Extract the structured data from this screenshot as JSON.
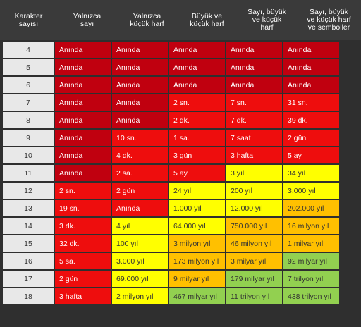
{
  "headers": [
    "Karakter\nsayısı",
    "Yalnızca\nsayı",
    "Yalnızca\nküçük harf",
    "Büyük ve\nküçük harf",
    "Sayı, büyük\nve küçük\nharf",
    "Sayı, büyük\nve küçük harf\nve semboller"
  ],
  "colors": {
    "dark": "#c0000f",
    "red": "#ee0d0d",
    "yellow": "#ffff00",
    "orange": "#ffc000",
    "green": "#92d050"
  },
  "rows": [
    {
      "chars": "4",
      "cells": [
        [
          "Anında",
          "dark"
        ],
        [
          "Anında",
          "dark"
        ],
        [
          "Anında",
          "dark"
        ],
        [
          "Anında",
          "dark"
        ],
        [
          "Anında",
          "dark"
        ]
      ]
    },
    {
      "chars": "5",
      "cells": [
        [
          "Anında",
          "dark"
        ],
        [
          "Anında",
          "dark"
        ],
        [
          "Anında",
          "dark"
        ],
        [
          "Anında",
          "dark"
        ],
        [
          "Anında",
          "dark"
        ]
      ]
    },
    {
      "chars": "6",
      "cells": [
        [
          "Anında",
          "dark"
        ],
        [
          "Anında",
          "dark"
        ],
        [
          "Anında",
          "dark"
        ],
        [
          "Anında",
          "dark"
        ],
        [
          "Anında",
          "dark"
        ]
      ]
    },
    {
      "chars": "7",
      "cells": [
        [
          "Anında",
          "dark"
        ],
        [
          "Anında",
          "dark"
        ],
        [
          "2 sn.",
          "red"
        ],
        [
          "7 sn.",
          "red"
        ],
        [
          "31 sn.",
          "red"
        ]
      ]
    },
    {
      "chars": "8",
      "cells": [
        [
          "Anında",
          "dark"
        ],
        [
          "Anında",
          "dark"
        ],
        [
          "2 dk.",
          "red"
        ],
        [
          "7 dk.",
          "red"
        ],
        [
          "39 dk.",
          "red"
        ]
      ]
    },
    {
      "chars": "9",
      "cells": [
        [
          "Anında",
          "dark"
        ],
        [
          "10 sn.",
          "red"
        ],
        [
          "1 sa.",
          "red"
        ],
        [
          "7 saat",
          "red"
        ],
        [
          "2 gün",
          "red"
        ]
      ]
    },
    {
      "chars": "10",
      "cells": [
        [
          "Anında",
          "dark"
        ],
        [
          "4 dk.",
          "red"
        ],
        [
          "3 gün",
          "red"
        ],
        [
          "3 hafta",
          "red"
        ],
        [
          "5 ay",
          "red"
        ]
      ]
    },
    {
      "chars": "11",
      "cells": [
        [
          "Anında",
          "dark"
        ],
        [
          "2 sa.",
          "red"
        ],
        [
          "5 ay",
          "red"
        ],
        [
          "3 yıl",
          "yellow"
        ],
        [
          "34 yıl",
          "yellow"
        ]
      ]
    },
    {
      "chars": "12",
      "cells": [
        [
          "2 sn.",
          "red"
        ],
        [
          "2 gün",
          "red"
        ],
        [
          "24 yıl",
          "yellow"
        ],
        [
          "200 yıl",
          "yellow"
        ],
        [
          "3.000 yıl",
          "yellow"
        ]
      ]
    },
    {
      "chars": "13",
      "cells": [
        [
          "19 sn.",
          "red"
        ],
        [
          "Anında",
          "red"
        ],
        [
          "1.000 yıl",
          "yellow"
        ],
        [
          "12.000 yıl",
          "yellow"
        ],
        [
          "202.000 yıl",
          "orange"
        ]
      ]
    },
    {
      "chars": "14",
      "cells": [
        [
          "3 dk.",
          "red"
        ],
        [
          "4 yıl",
          "yellow"
        ],
        [
          "64.000 yıl",
          "yellow"
        ],
        [
          "750.000 yıl",
          "orange"
        ],
        [
          "16 milyon yıl",
          "orange"
        ]
      ]
    },
    {
      "chars": "15",
      "cells": [
        [
          "32 dk.",
          "red"
        ],
        [
          "100 yıl",
          "yellow"
        ],
        [
          "3 milyon yıl",
          "orange"
        ],
        [
          "46 milyon yıl",
          "orange"
        ],
        [
          "1 milyar yıl",
          "orange"
        ]
      ]
    },
    {
      "chars": "16",
      "cells": [
        [
          "5 sa.",
          "red"
        ],
        [
          "3.000 yıl",
          "yellow"
        ],
        [
          "173 milyon yıl",
          "orange"
        ],
        [
          "3 milyar yıl",
          "orange"
        ],
        [
          "92 milyar yıl",
          "green"
        ]
      ]
    },
    {
      "chars": "17",
      "cells": [
        [
          "2 gün",
          "red"
        ],
        [
          "69.000 yıl",
          "yellow"
        ],
        [
          "9 milyar yıl",
          "orange"
        ],
        [
          "179 milyar yıl",
          "green"
        ],
        [
          "7 trilyon yıl",
          "green"
        ]
      ]
    },
    {
      "chars": "18",
      "cells": [
        [
          "3 hafta",
          "red"
        ],
        [
          "2 milyon yıl",
          "yellow"
        ],
        [
          "467 milyar yıl",
          "green"
        ],
        [
          "11 trilyon yıl",
          "green"
        ],
        [
          "438 trilyon yıl",
          "green"
        ]
      ]
    }
  ]
}
